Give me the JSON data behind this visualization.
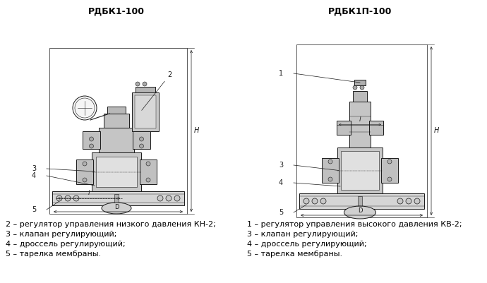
{
  "title_left": "РДБК1-100",
  "title_right": "РДБК1П-100",
  "legend_left": [
    "2 – регулятор управления низкого давления КН-2;",
    "3 – клапан регулирующий;",
    "4 – дроссель регулирующий;",
    "5 – тарелка мембраны."
  ],
  "legend_right": [
    "1 – регулятор управления высокого давления КВ-2;",
    "3 – клапан регулирующий;",
    "4 – дроссель регулирующий;",
    "5 – тарелка мембраны."
  ],
  "bg_color": "#ffffff",
  "text_color": "#000000",
  "title_fontsize": 9,
  "legend_fontsize": 8
}
